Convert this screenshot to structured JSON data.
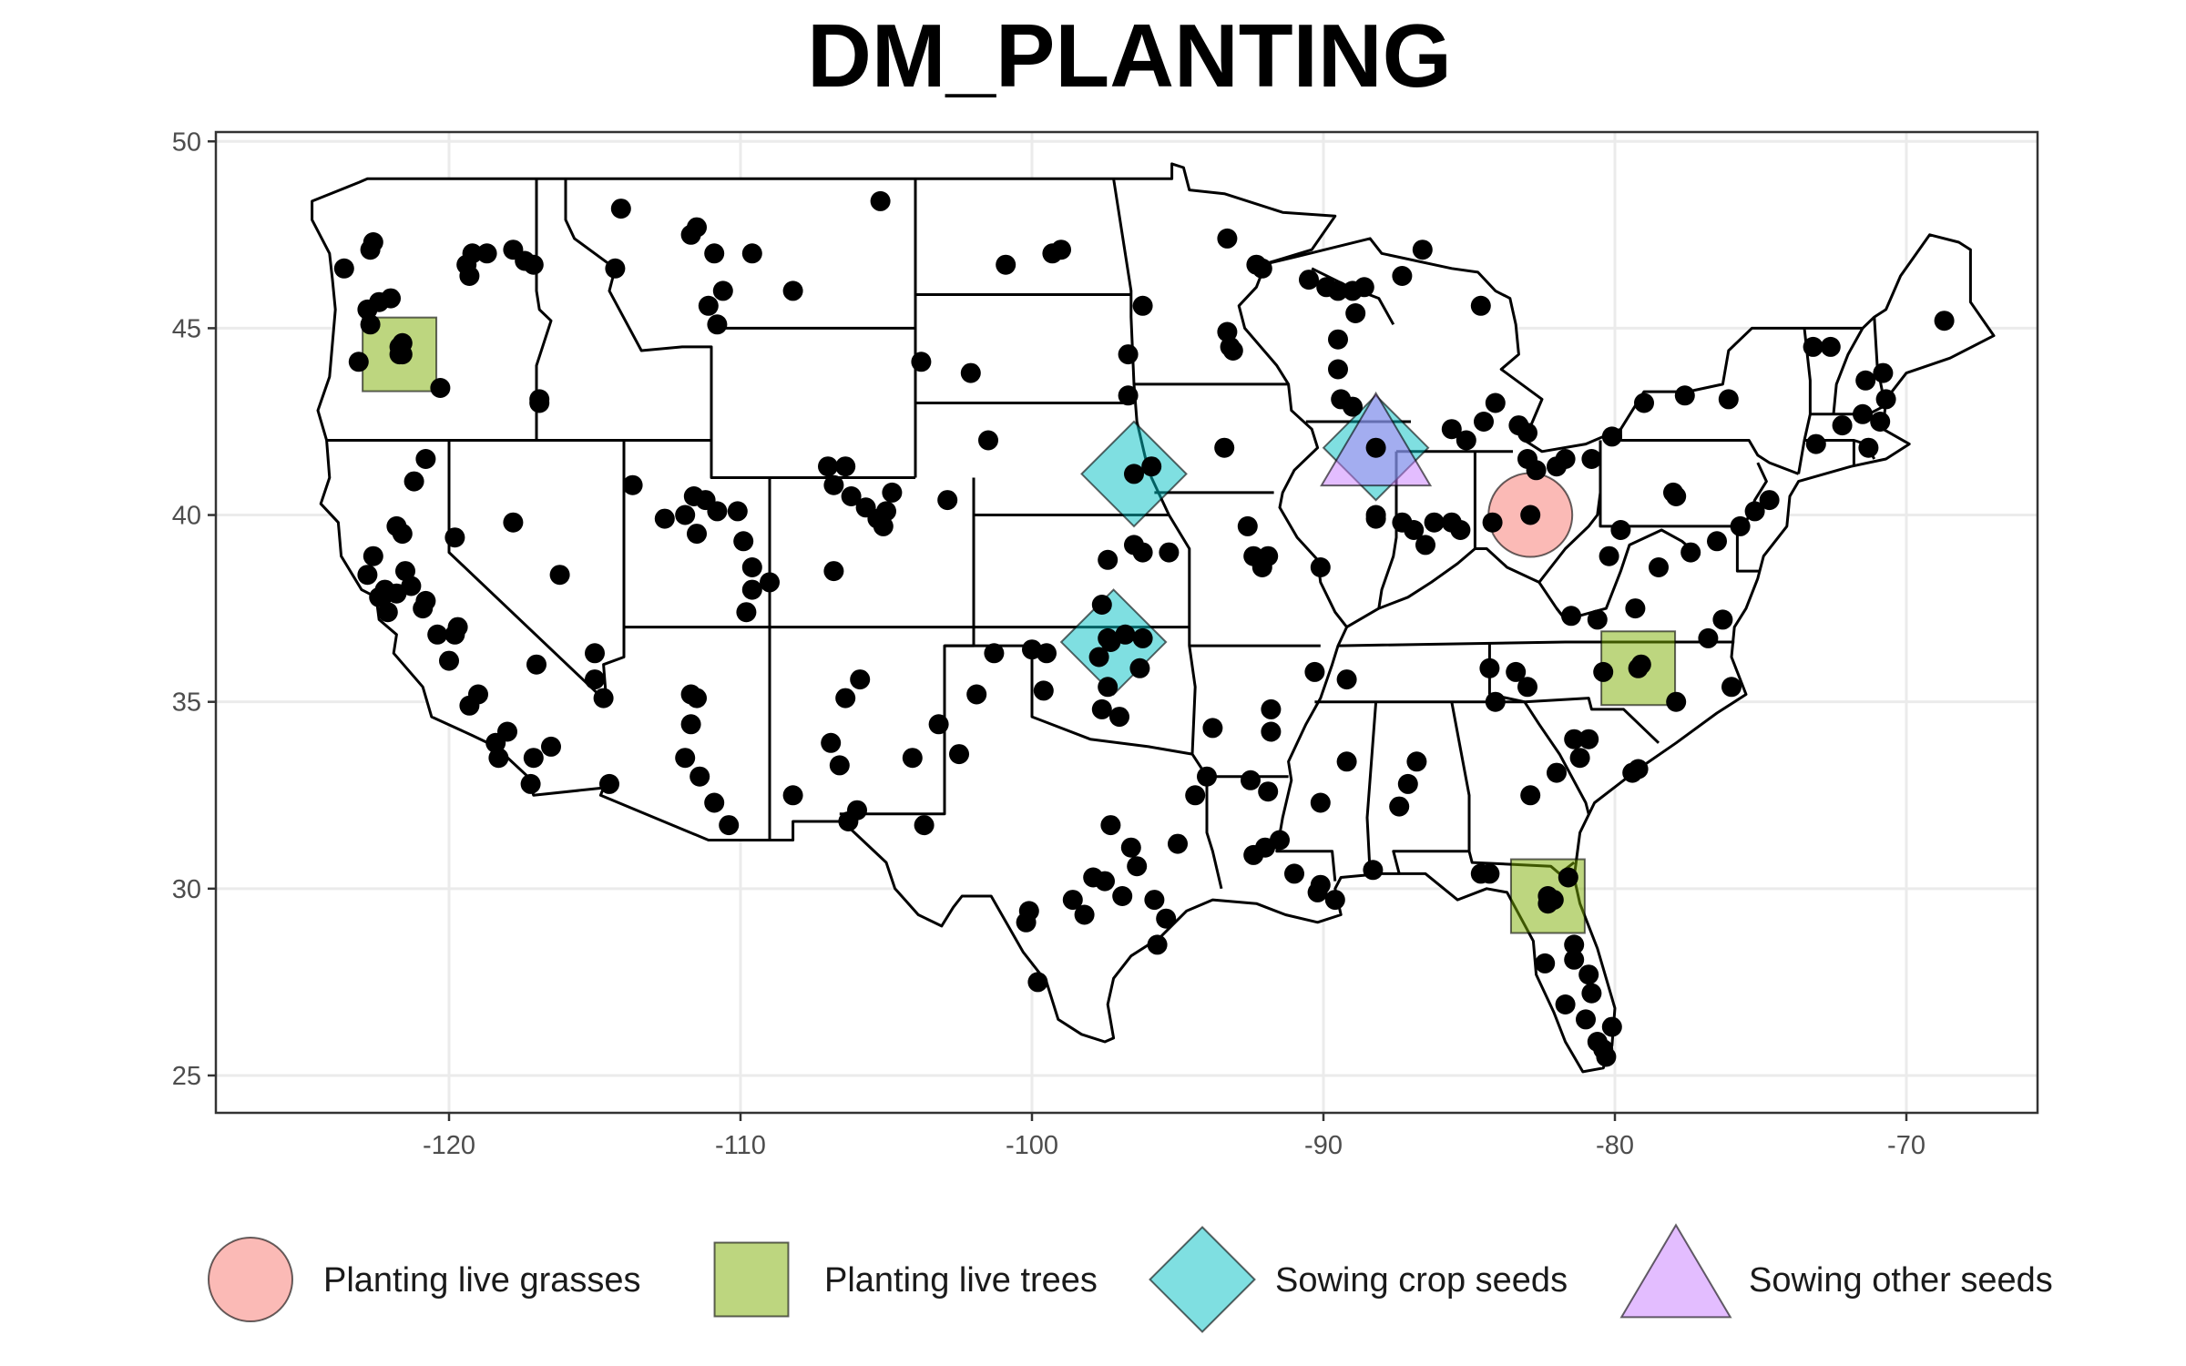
{
  "title": "DM_PLANTING",
  "chart_data": {
    "type": "scatter",
    "title": "DM_PLANTING",
    "xlabel": "",
    "ylabel": "",
    "xlim": [
      -128,
      -65.5
    ],
    "ylim": [
      24,
      50.25
    ],
    "x_ticks": [
      {
        "value": -120,
        "label": "-120"
      },
      {
        "value": -110,
        "label": "-110"
      },
      {
        "value": -100,
        "label": "-100"
      },
      {
        "value": -90,
        "label": "-90"
      },
      {
        "value": -80,
        "label": "-80"
      },
      {
        "value": -70,
        "label": "-70"
      }
    ],
    "y_ticks": [
      {
        "value": 25,
        "label": "25"
      },
      {
        "value": 30,
        "label": "30"
      },
      {
        "value": 35,
        "label": "35"
      },
      {
        "value": 40,
        "label": "40"
      },
      {
        "value": 45,
        "label": "45"
      },
      {
        "value": 50,
        "label": "50"
      }
    ],
    "grid": true,
    "legend_position": "bottom",
    "basemap": "contiguous United States state boundaries",
    "colors": {
      "grid": "#ebebeb",
      "border": "#333333",
      "points": "#000000",
      "state_lines": "#000000"
    },
    "legend": [
      {
        "label": "Planting live grasses",
        "shape": "circle",
        "color": "#F8766D"
      },
      {
        "label": "Planting live trees",
        "shape": "square",
        "color": "#7CAE00"
      },
      {
        "label": "Sowing crop seeds",
        "shape": "diamond",
        "color": "#00BFC4"
      },
      {
        "label": "Sowing other seeds",
        "shape": "triangle",
        "color": "#C77CFF"
      }
    ],
    "category_markers": [
      {
        "category": "Planting live grasses",
        "x": -82.9,
        "y": 40.0
      },
      {
        "category": "Planting live trees",
        "x": -121.7,
        "y": 44.3
      },
      {
        "category": "Planting live trees",
        "x": -79.2,
        "y": 35.9
      },
      {
        "category": "Planting live trees",
        "x": -82.3,
        "y": 29.8
      },
      {
        "category": "Sowing crop seeds",
        "x": -96.5,
        "y": 41.1
      },
      {
        "category": "Sowing crop seeds",
        "x": -97.2,
        "y": 36.6
      },
      {
        "category": "Sowing crop seeds",
        "x": -88.2,
        "y": 41.8
      },
      {
        "category": "Sowing other seeds",
        "x": -88.2,
        "y": 41.8
      }
    ],
    "points": [
      [
        -123.6,
        46.6
      ],
      [
        -123.1,
        44.1
      ],
      [
        -122.8,
        45.5
      ],
      [
        -122.4,
        45.7
      ],
      [
        -122.0,
        45.8
      ],
      [
        -122.7,
        47.1
      ],
      [
        -122.6,
        47.3
      ],
      [
        -122.7,
        45.1
      ],
      [
        -121.6,
        44.6
      ],
      [
        -121.7,
        44.3
      ],
      [
        -120.3,
        43.4
      ],
      [
        -119.4,
        46.7
      ],
      [
        -119.3,
        46.4
      ],
      [
        -119.2,
        47.0
      ],
      [
        -118.7,
        47.0
      ],
      [
        -117.8,
        47.1
      ],
      [
        -117.4,
        46.8
      ],
      [
        -117.1,
        46.7
      ],
      [
        -116.9,
        43.1
      ],
      [
        -116.9,
        43.0
      ],
      [
        -114.3,
        46.6
      ],
      [
        -114.1,
        48.2
      ],
      [
        -111.7,
        47.5
      ],
      [
        -111.5,
        47.7
      ],
      [
        -110.9,
        47.0
      ],
      [
        -109.6,
        47.0
      ],
      [
        -110.6,
        46.0
      ],
      [
        -111.1,
        45.6
      ],
      [
        -110.8,
        45.1
      ],
      [
        -108.2,
        46.0
      ],
      [
        -105.2,
        48.4
      ],
      [
        -100.9,
        46.7
      ],
      [
        -99.3,
        47.0
      ],
      [
        -99.0,
        47.1
      ],
      [
        -103.8,
        44.1
      ],
      [
        -102.1,
        43.8
      ],
      [
        -96.2,
        45.6
      ],
      [
        -96.7,
        44.3
      ],
      [
        -96.7,
        43.2
      ],
      [
        -93.3,
        47.4
      ],
      [
        -92.1,
        46.6
      ],
      [
        -92.3,
        46.7
      ],
      [
        -90.5,
        46.3
      ],
      [
        -89.9,
        46.1
      ],
      [
        -89.5,
        46.0
      ],
      [
        -89.0,
        46.0
      ],
      [
        -88.9,
        45.4
      ],
      [
        -89.5,
        44.7
      ],
      [
        -89.5,
        43.9
      ],
      [
        -89.4,
        43.1
      ],
      [
        -89.0,
        42.9
      ],
      [
        -88.6,
        46.1
      ],
      [
        -87.3,
        46.4
      ],
      [
        -86.6,
        47.1
      ],
      [
        -84.6,
        45.6
      ],
      [
        -84.1,
        43.0
      ],
      [
        -84.5,
        42.5
      ],
      [
        -85.6,
        42.3
      ],
      [
        -85.1,
        42.0
      ],
      [
        -83.3,
        42.4
      ],
      [
        -83.0,
        42.2
      ],
      [
        -93.3,
        44.9
      ],
      [
        -93.2,
        44.5
      ],
      [
        -93.1,
        44.4
      ],
      [
        -93.4,
        41.8
      ],
      [
        -95.9,
        41.3
      ],
      [
        -101.5,
        42.0
      ],
      [
        -102.9,
        40.4
      ],
      [
        -104.8,
        40.6
      ],
      [
        -105.0,
        40.1
      ],
      [
        -105.3,
        39.9
      ],
      [
        -105.1,
        39.7
      ],
      [
        -105.7,
        40.2
      ],
      [
        -106.2,
        40.5
      ],
      [
        -106.4,
        41.3
      ],
      [
        -106.8,
        40.8
      ],
      [
        -107.0,
        41.3
      ],
      [
        -106.8,
        38.5
      ],
      [
        -109.0,
        38.2
      ],
      [
        -109.6,
        38.6
      ],
      [
        -109.6,
        38.0
      ],
      [
        -109.8,
        37.4
      ],
      [
        -109.9,
        39.3
      ],
      [
        -110.1,
        40.1
      ],
      [
        -110.8,
        40.1
      ],
      [
        -111.6,
        40.5
      ],
      [
        -111.9,
        40.0
      ],
      [
        -113.7,
        40.8
      ],
      [
        -111.2,
        40.4
      ],
      [
        -100.0,
        36.4
      ],
      [
        -97.4,
        38.8
      ],
      [
        -96.5,
        39.2
      ],
      [
        -96.2,
        39.0
      ],
      [
        -95.3,
        39.0
      ],
      [
        -97.6,
        37.6
      ],
      [
        -97.4,
        36.7
      ],
      [
        -97.4,
        35.4
      ],
      [
        -97.6,
        34.8
      ],
      [
        -97.0,
        34.6
      ],
      [
        -96.8,
        36.8
      ],
      [
        -96.2,
        36.7
      ],
      [
        -99.5,
        36.3
      ],
      [
        -101.3,
        36.3
      ],
      [
        -99.6,
        35.3
      ],
      [
        -97.7,
        36.2
      ],
      [
        -97.3,
        36.6
      ],
      [
        -96.3,
        35.9
      ],
      [
        -92.6,
        39.7
      ],
      [
        -92.4,
        38.9
      ],
      [
        -92.1,
        38.6
      ],
      [
        -91.9,
        38.9
      ],
      [
        -90.1,
        38.6
      ],
      [
        -88.2,
        40.0
      ],
      [
        -88.2,
        39.9
      ],
      [
        -87.3,
        39.8
      ],
      [
        -86.9,
        39.6
      ],
      [
        -86.5,
        39.2
      ],
      [
        -86.2,
        39.8
      ],
      [
        -85.6,
        39.8
      ],
      [
        -85.3,
        39.6
      ],
      [
        -84.2,
        39.8
      ],
      [
        -83.0,
        41.5
      ],
      [
        -82.7,
        41.2
      ],
      [
        -82.0,
        41.3
      ],
      [
        -81.7,
        41.5
      ],
      [
        -80.8,
        41.5
      ],
      [
        -78.0,
        40.6
      ],
      [
        -77.9,
        40.5
      ],
      [
        -75.2,
        40.1
      ],
      [
        -75.7,
        39.7
      ],
      [
        -76.5,
        39.3
      ],
      [
        -77.4,
        39.0
      ],
      [
        -78.5,
        38.6
      ],
      [
        -79.8,
        39.6
      ],
      [
        -80.2,
        38.9
      ],
      [
        -79.3,
        37.5
      ],
      [
        -80.6,
        37.2
      ],
      [
        -81.5,
        37.3
      ],
      [
        -76.3,
        37.2
      ],
      [
        -76.8,
        36.7
      ],
      [
        -77.9,
        35.0
      ],
      [
        -76.0,
        35.4
      ],
      [
        -79.1,
        36.0
      ],
      [
        -80.4,
        35.8
      ],
      [
        -81.4,
        34.0
      ],
      [
        -80.9,
        34.0
      ],
      [
        -79.2,
        33.2
      ],
      [
        -79.4,
        33.1
      ],
      [
        -84.3,
        35.9
      ],
      [
        -83.4,
        35.8
      ],
      [
        -83.0,
        35.4
      ],
      [
        -84.1,
        35.0
      ],
      [
        -86.8,
        33.4
      ],
      [
        -87.1,
        32.8
      ],
      [
        -87.4,
        32.2
      ],
      [
        -88.3,
        30.5
      ],
      [
        -89.6,
        29.7
      ],
      [
        -90.1,
        30.1
      ],
      [
        -90.2,
        29.9
      ],
      [
        -91.0,
        30.4
      ],
      [
        -91.5,
        31.3
      ],
      [
        -92.0,
        31.1
      ],
      [
        -92.4,
        30.9
      ],
      [
        -91.9,
        32.6
      ],
      [
        -92.5,
        32.9
      ],
      [
        -91.8,
        34.2
      ],
      [
        -91.8,
        34.8
      ],
      [
        -89.2,
        33.4
      ],
      [
        -90.1,
        32.3
      ],
      [
        -89.2,
        35.6
      ],
      [
        -90.3,
        35.8
      ],
      [
        -93.8,
        34.3
      ],
      [
        -94.0,
        33.0
      ],
      [
        -94.4,
        32.5
      ],
      [
        -95.0,
        31.2
      ],
      [
        -96.4,
        30.6
      ],
      [
        -96.6,
        31.1
      ],
      [
        -97.3,
        31.7
      ],
      [
        -97.9,
        30.3
      ],
      [
        -97.5,
        30.2
      ],
      [
        -96.9,
        29.8
      ],
      [
        -95.8,
        29.7
      ],
      [
        -95.4,
        29.2
      ],
      [
        -95.7,
        28.5
      ],
      [
        -98.2,
        29.3
      ],
      [
        -98.6,
        29.7
      ],
      [
        -99.8,
        27.5
      ],
      [
        -100.1,
        29.4
      ],
      [
        -100.2,
        29.1
      ],
      [
        -102.5,
        33.6
      ],
      [
        -103.2,
        34.4
      ],
      [
        -103.7,
        31.7
      ],
      [
        -101.9,
        35.2
      ],
      [
        -104.1,
        33.5
      ],
      [
        -106.4,
        35.1
      ],
      [
        -105.9,
        35.6
      ],
      [
        -106.6,
        33.3
      ],
      [
        -106.9,
        33.9
      ],
      [
        -106.0,
        32.1
      ],
      [
        -106.3,
        31.8
      ],
      [
        -108.2,
        32.5
      ],
      [
        -110.4,
        31.7
      ],
      [
        -110.9,
        32.3
      ],
      [
        -111.4,
        33.0
      ],
      [
        -111.9,
        33.5
      ],
      [
        -111.7,
        34.4
      ],
      [
        -111.5,
        35.1
      ],
      [
        -114.5,
        32.8
      ],
      [
        -115.0,
        35.6
      ],
      [
        -116.5,
        33.8
      ],
      [
        -117.1,
        33.5
      ],
      [
        -117.2,
        32.8
      ],
      [
        -118.0,
        34.2
      ],
      [
        -118.3,
        33.5
      ],
      [
        -118.4,
        33.9
      ],
      [
        -119.0,
        35.2
      ],
      [
        -119.3,
        34.9
      ],
      [
        -119.8,
        36.8
      ],
      [
        -119.7,
        37.0
      ],
      [
        -120.0,
        36.1
      ],
      [
        -120.4,
        36.8
      ],
      [
        -120.8,
        37.7
      ],
      [
        -120.9,
        37.5
      ],
      [
        -121.3,
        38.1
      ],
      [
        -121.5,
        38.5
      ],
      [
        -121.6,
        39.5
      ],
      [
        -121.8,
        39.7
      ],
      [
        -121.8,
        37.9
      ],
      [
        -122.1,
        37.4
      ],
      [
        -122.2,
        38.0
      ],
      [
        -122.3,
        37.8
      ],
      [
        -122.4,
        37.8
      ],
      [
        -122.8,
        38.4
      ],
      [
        -122.6,
        38.9
      ],
      [
        -121.2,
        40.9
      ],
      [
        -120.8,
        41.5
      ],
      [
        -119.8,
        39.4
      ],
      [
        -117.8,
        39.8
      ],
      [
        -115.0,
        36.3
      ],
      [
        -114.7,
        35.1
      ],
      [
        -117.0,
        36.0
      ],
      [
        -116.2,
        38.4
      ],
      [
        -112.6,
        39.9
      ],
      [
        -111.5,
        39.5
      ],
      [
        -111.7,
        35.2
      ],
      [
        -84.6,
        30.4
      ],
      [
        -82.9,
        32.5
      ],
      [
        -82.0,
        33.1
      ],
      [
        -81.2,
        33.5
      ],
      [
        -81.6,
        30.3
      ],
      [
        -82.3,
        29.6
      ],
      [
        -81.4,
        28.5
      ],
      [
        -81.4,
        28.1
      ],
      [
        -80.9,
        27.7
      ],
      [
        -81.7,
        26.9
      ],
      [
        -81.0,
        26.5
      ],
      [
        -80.4,
        25.7
      ],
      [
        -80.3,
        25.5
      ],
      [
        -80.6,
        25.9
      ],
      [
        -80.1,
        26.3
      ],
      [
        -80.8,
        27.2
      ],
      [
        -82.4,
        28.0
      ],
      [
        -84.3,
        30.4
      ],
      [
        -74.7,
        40.4
      ],
      [
        -73.1,
        41.9
      ],
      [
        -72.2,
        42.4
      ],
      [
        -71.5,
        42.7
      ],
      [
        -71.3,
        41.8
      ],
      [
        -70.9,
        42.5
      ],
      [
        -70.7,
        43.1
      ],
      [
        -71.4,
        43.6
      ],
      [
        -72.6,
        44.5
      ],
      [
        -73.2,
        44.5
      ],
      [
        -68.7,
        45.2
      ],
      [
        -70.8,
        43.8
      ],
      [
        -76.1,
        43.1
      ],
      [
        -77.6,
        43.2
      ],
      [
        -79.0,
        43.0
      ],
      [
        -80.1,
        42.1
      ],
      [
        -82.9,
        40.0
      ],
      [
        -88.2,
        41.8
      ],
      [
        -96.5,
        41.1
      ],
      [
        -79.2,
        35.9
      ],
      [
        -82.3,
        29.8
      ],
      [
        -82.1,
        29.7
      ],
      [
        -121.7,
        44.5
      ],
      [
        -121.6,
        44.3
      ]
    ]
  }
}
